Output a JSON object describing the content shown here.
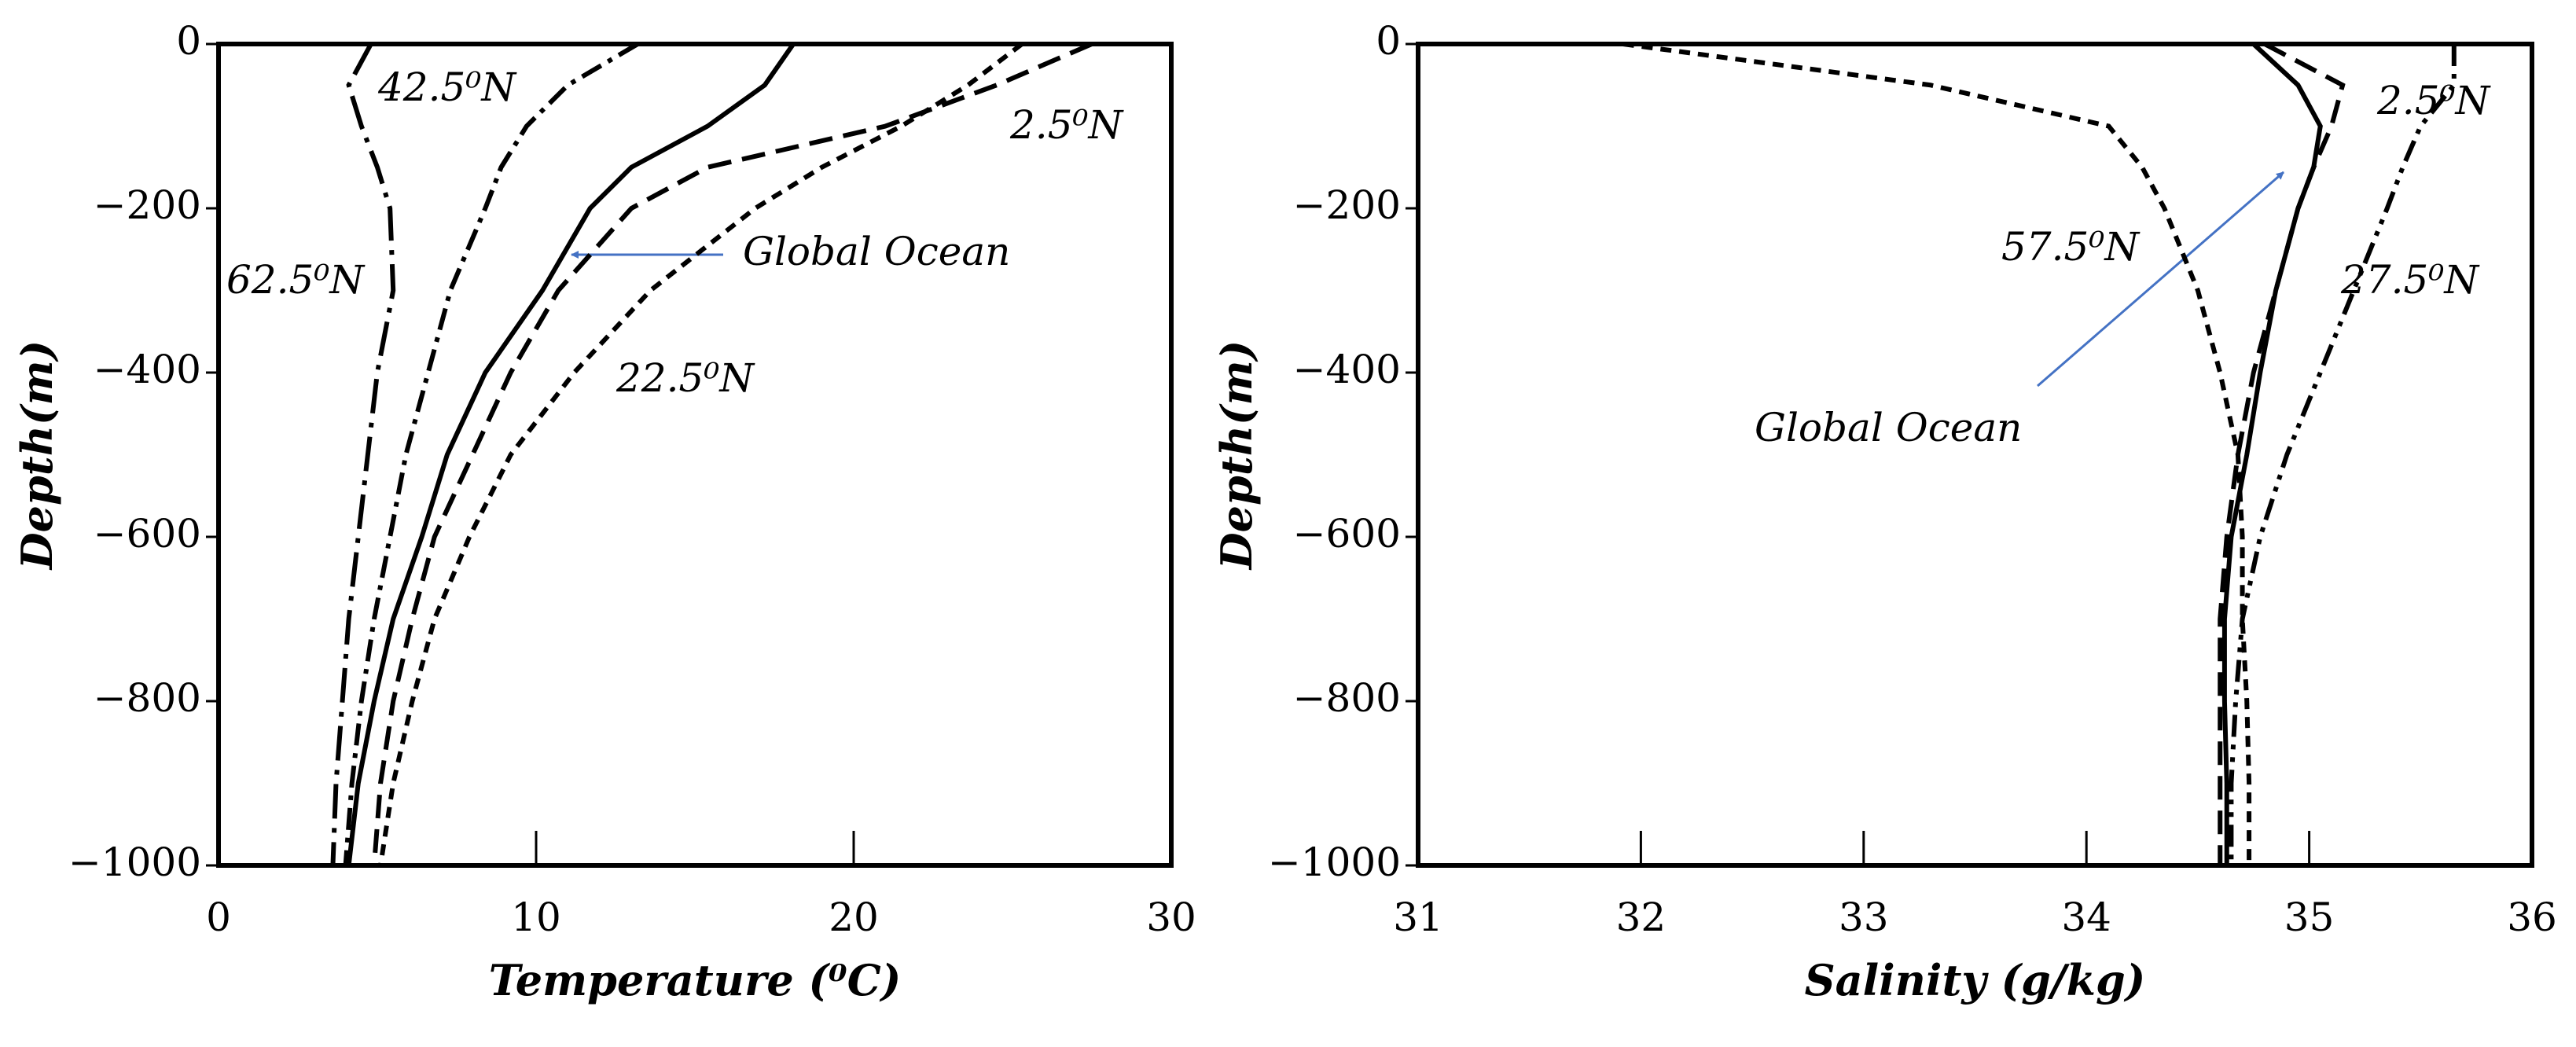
{
  "chart_data": [
    {
      "type": "line",
      "xlabel": "Temperature (⁰C)",
      "ylabel": "Depth(m)",
      "xlim": [
        0,
        30
      ],
      "ylim": [
        -1000,
        0
      ],
      "xticks": [
        0,
        10,
        20,
        30
      ],
      "yticks": [
        {
          "value": 0,
          "label": "0"
        },
        {
          "value": -200,
          "label": "−200"
        },
        {
          "value": -400,
          "label": "−400"
        },
        {
          "value": -600,
          "label": "−600"
        },
        {
          "value": -800,
          "label": "−800"
        },
        {
          "value": -1000,
          "label": "−1000"
        }
      ],
      "y": [
        0,
        -50,
        -100,
        -150,
        -200,
        -300,
        -400,
        -500,
        -600,
        -700,
        -800,
        -900,
        -1000
      ],
      "series": [
        {
          "name": "Global Ocean",
          "color": "#000000",
          "style": "solid",
          "values": [
            18.1,
            17.2,
            15.4,
            13.0,
            11.7,
            10.2,
            8.4,
            7.2,
            6.4,
            5.5,
            4.9,
            4.4,
            4.1
          ]
        },
        {
          "name": "2.5⁰N",
          "color": "#000000",
          "style": "dashed",
          "values": [
            27.5,
            24.5,
            21.0,
            15.4,
            13.0,
            10.7,
            9.2,
            8.0,
            6.8,
            6.1,
            5.5,
            5.1,
            4.9
          ]
        },
        {
          "name": "22.5⁰N",
          "color": "#000000",
          "style": "dotted",
          "values": [
            25.3,
            23.6,
            21.5,
            19.0,
            16.9,
            13.6,
            11.2,
            9.2,
            7.9,
            6.8,
            6.1,
            5.5,
            5.1
          ]
        },
        {
          "name": "42.5⁰N",
          "color": "#000000",
          "style": "dashdot",
          "values": [
            13.2,
            11.0,
            9.7,
            8.9,
            8.4,
            7.3,
            6.6,
            5.9,
            5.4,
            4.9,
            4.5,
            4.2,
            4.0
          ]
        },
        {
          "name": "62.5⁰N",
          "color": "#000000",
          "style": "longdashdot",
          "values": [
            4.8,
            4.1,
            4.5,
            5.0,
            5.4,
            5.5,
            5.0,
            4.7,
            4.4,
            4.1,
            3.9,
            3.7,
            3.6
          ]
        }
      ]
    },
    {
      "type": "line",
      "xlabel": "Salinity (g/kg)",
      "ylabel": "Depth(m)",
      "xlim": [
        31,
        36
      ],
      "ylim": [
        -1000,
        0
      ],
      "xticks": [
        31,
        32,
        33,
        34,
        35,
        36
      ],
      "yticks": [
        {
          "value": 0,
          "label": "0"
        },
        {
          "value": -200,
          "label": "−200"
        },
        {
          "value": -400,
          "label": "−400"
        },
        {
          "value": -600,
          "label": "−600"
        },
        {
          "value": -800,
          "label": "−800"
        },
        {
          "value": -1000,
          "label": "−1000"
        }
      ],
      "y": [
        0,
        -50,
        -100,
        -150,
        -200,
        -300,
        -400,
        -500,
        -600,
        -700,
        -800,
        -900,
        -1000
      ],
      "series": [
        {
          "name": "Global Ocean",
          "color": "#000000",
          "style": "solid",
          "values": [
            34.75,
            34.95,
            35.05,
            35.02,
            34.95,
            34.85,
            34.78,
            34.72,
            34.65,
            34.62,
            34.62,
            34.63,
            34.63
          ]
        },
        {
          "name": "57.5⁰N",
          "color": "#000000",
          "style": "dotted",
          "values": [
            31.92,
            33.3,
            34.1,
            34.25,
            34.35,
            34.5,
            34.6,
            34.68,
            34.7,
            34.7,
            34.72,
            34.73,
            34.73
          ]
        },
        {
          "name": "2.5⁰N",
          "color": "#000000",
          "style": "dashed",
          "values": [
            34.8,
            35.15,
            35.1,
            35.02,
            34.95,
            34.85,
            34.75,
            34.68,
            34.63,
            34.6,
            34.6,
            34.6,
            34.6
          ]
        },
        {
          "name": "27.5⁰N",
          "color": "#000000",
          "style": "dashdotdot",
          "values": [
            35.65,
            35.65,
            35.5,
            35.42,
            35.35,
            35.2,
            35.05,
            34.9,
            34.78,
            34.7,
            34.67,
            34.65,
            34.65
          ]
        }
      ]
    }
  ]
}
